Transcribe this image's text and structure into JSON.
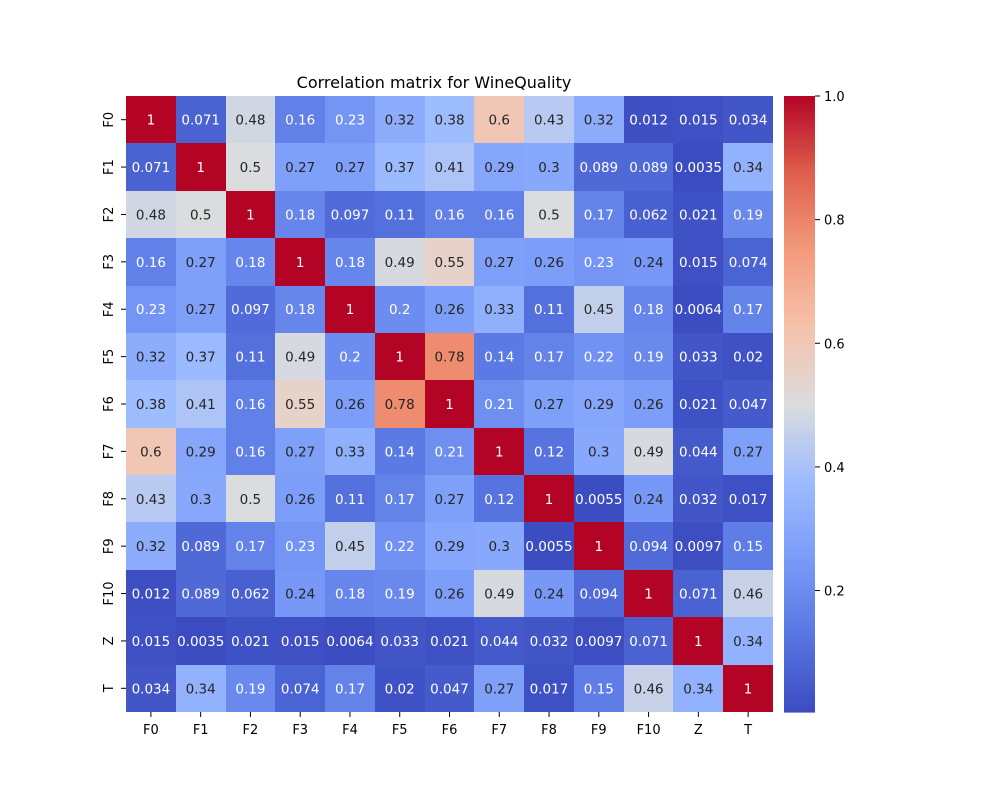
{
  "chart_data": {
    "type": "heatmap",
    "title": "Correlation matrix for WineQuality",
    "xlabel": "",
    "ylabel": "",
    "labels": [
      "F0",
      "F1",
      "F2",
      "F3",
      "F4",
      "F5",
      "F6",
      "F7",
      "F8",
      "F9",
      "F10",
      "Z",
      "T"
    ],
    "cells": [
      [
        "1",
        "0.071",
        "0.48",
        "0.16",
        "0.23",
        "0.32",
        "0.38",
        "0.6",
        "0.43",
        "0.32",
        "0.012",
        "0.015",
        "0.034"
      ],
      [
        "0.071",
        "1",
        "0.5",
        "0.27",
        "0.27",
        "0.37",
        "0.41",
        "0.29",
        "0.3",
        "0.089",
        "0.089",
        "0.0035",
        "0.34"
      ],
      [
        "0.48",
        "0.5",
        "1",
        "0.18",
        "0.097",
        "0.11",
        "0.16",
        "0.16",
        "0.5",
        "0.17",
        "0.062",
        "0.021",
        "0.19"
      ],
      [
        "0.16",
        "0.27",
        "0.18",
        "1",
        "0.18",
        "0.49",
        "0.55",
        "0.27",
        "0.26",
        "0.23",
        "0.24",
        "0.015",
        "0.074"
      ],
      [
        "0.23",
        "0.27",
        "0.097",
        "0.18",
        "1",
        "0.2",
        "0.26",
        "0.33",
        "0.11",
        "0.45",
        "0.18",
        "0.0064",
        "0.17"
      ],
      [
        "0.32",
        "0.37",
        "0.11",
        "0.49",
        "0.2",
        "1",
        "0.78",
        "0.14",
        "0.17",
        "0.22",
        "0.19",
        "0.033",
        "0.02"
      ],
      [
        "0.38",
        "0.41",
        "0.16",
        "0.55",
        "0.26",
        "0.78",
        "1",
        "0.21",
        "0.27",
        "0.29",
        "0.26",
        "0.021",
        "0.047"
      ],
      [
        "0.6",
        "0.29",
        "0.16",
        "0.27",
        "0.33",
        "0.14",
        "0.21",
        "1",
        "0.12",
        "0.3",
        "0.49",
        "0.044",
        "0.27"
      ],
      [
        "0.43",
        "0.3",
        "0.5",
        "0.26",
        "0.11",
        "0.17",
        "0.27",
        "0.12",
        "1",
        "0.0055",
        "0.24",
        "0.032",
        "0.017"
      ],
      [
        "0.32",
        "0.089",
        "0.17",
        "0.23",
        "0.45",
        "0.22",
        "0.29",
        "0.3",
        "0.0055",
        "1",
        "0.094",
        "0.0097",
        "0.15"
      ],
      [
        "0.012",
        "0.089",
        "0.062",
        "0.24",
        "0.18",
        "0.19",
        "0.26",
        "0.49",
        "0.24",
        "0.094",
        "1",
        "0.071",
        "0.46"
      ],
      [
        "0.015",
        "0.0035",
        "0.021",
        "0.015",
        "0.0064",
        "0.033",
        "0.021",
        "0.044",
        "0.032",
        "0.0097",
        "0.071",
        "1",
        "0.34"
      ],
      [
        "0.034",
        "0.34",
        "0.19",
        "0.074",
        "0.17",
        "0.02",
        "0.047",
        "0.27",
        "0.017",
        "0.15",
        "0.46",
        "0.34",
        "1"
      ]
    ],
    "colormap": "coolwarm",
    "vmin": 0.0035,
    "vmax": 1.0,
    "colorbar": {
      "ticks": [
        0.2,
        0.4,
        0.6,
        0.8,
        1.0
      ],
      "tick_labels": [
        "0.2",
        "0.4",
        "0.6",
        "0.8",
        "1.0"
      ]
    }
  }
}
